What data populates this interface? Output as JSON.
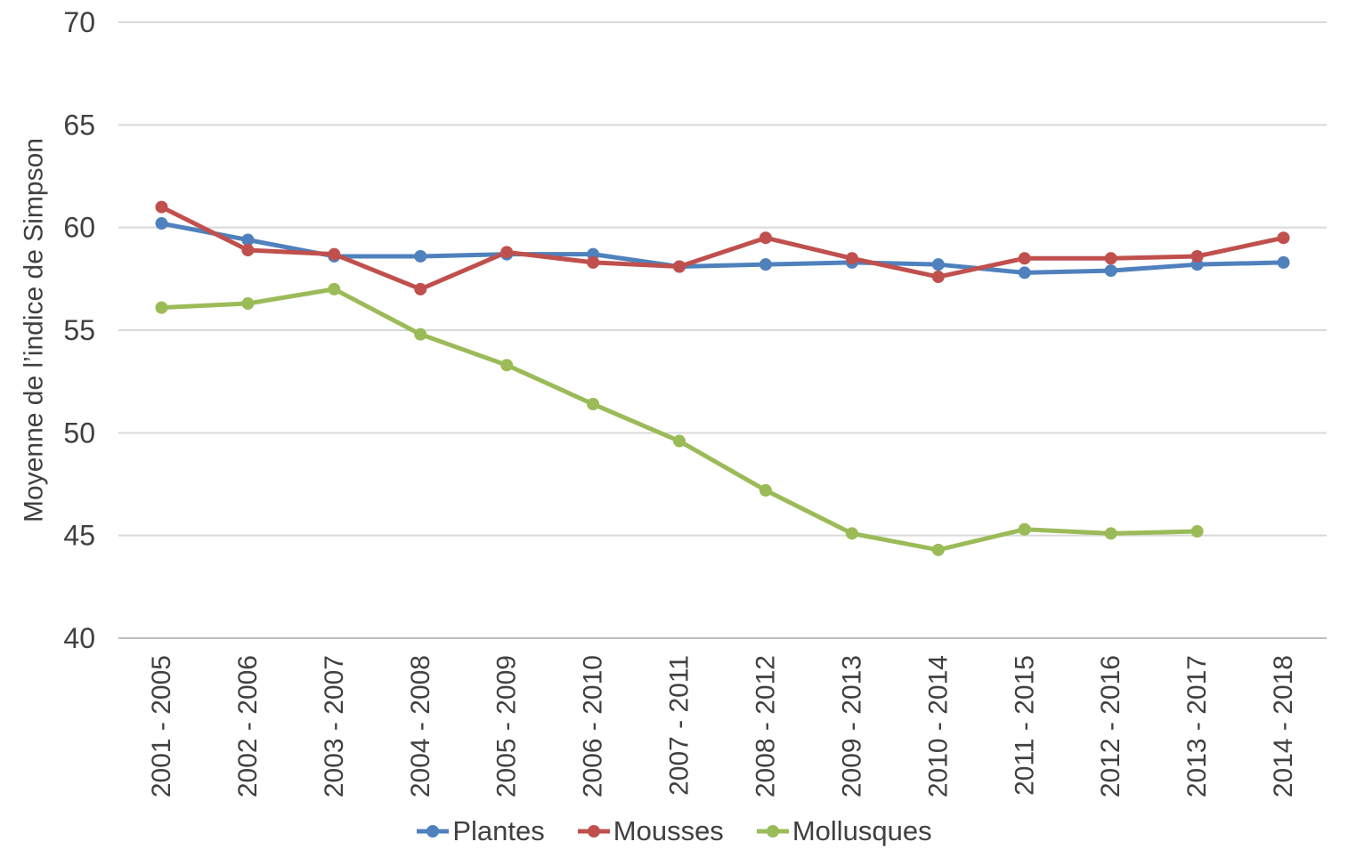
{
  "chart_data": {
    "type": "line",
    "title": "",
    "xlabel": "",
    "ylabel": "Moyenne de l’indice de Simpson",
    "ylim": [
      40,
      70
    ],
    "yticks": [
      40,
      45,
      50,
      55,
      60,
      65,
      70
    ],
    "grid": "horizontal",
    "legend_position": "bottom",
    "categories": [
      "2001 - 2005",
      "2002 - 2006",
      "2003 - 2007",
      "2004 - 2008",
      "2005 - 2009",
      "2006 - 2010",
      "2007 - 2011",
      "2008 - 2012",
      "2009 - 2013",
      "2010 - 2014",
      "2011 - 2015",
      "2012 - 2016",
      "2013 - 2017",
      "2014 - 2018"
    ],
    "series": [
      {
        "name": "Plantes",
        "color": "#4F81BD",
        "values": [
          60.2,
          59.4,
          58.6,
          58.6,
          58.7,
          58.7,
          58.1,
          58.2,
          58.3,
          58.2,
          57.8,
          57.9,
          58.2,
          58.3
        ]
      },
      {
        "name": "Mousses",
        "color": "#C0504D",
        "values": [
          61.0,
          58.9,
          58.7,
          57.0,
          58.8,
          58.3,
          58.1,
          59.5,
          58.5,
          57.6,
          58.5,
          58.5,
          58.6,
          59.5
        ]
      },
      {
        "name": "Mollusques",
        "color": "#9BBB59",
        "values": [
          56.1,
          56.3,
          57.0,
          54.8,
          53.3,
          51.4,
          49.6,
          47.2,
          45.1,
          44.3,
          45.3,
          45.1,
          45.2,
          null
        ]
      }
    ]
  },
  "colors": {
    "gridline": "#D9D9D9",
    "axis_line": "#BFBFBF",
    "text": "#404040"
  }
}
